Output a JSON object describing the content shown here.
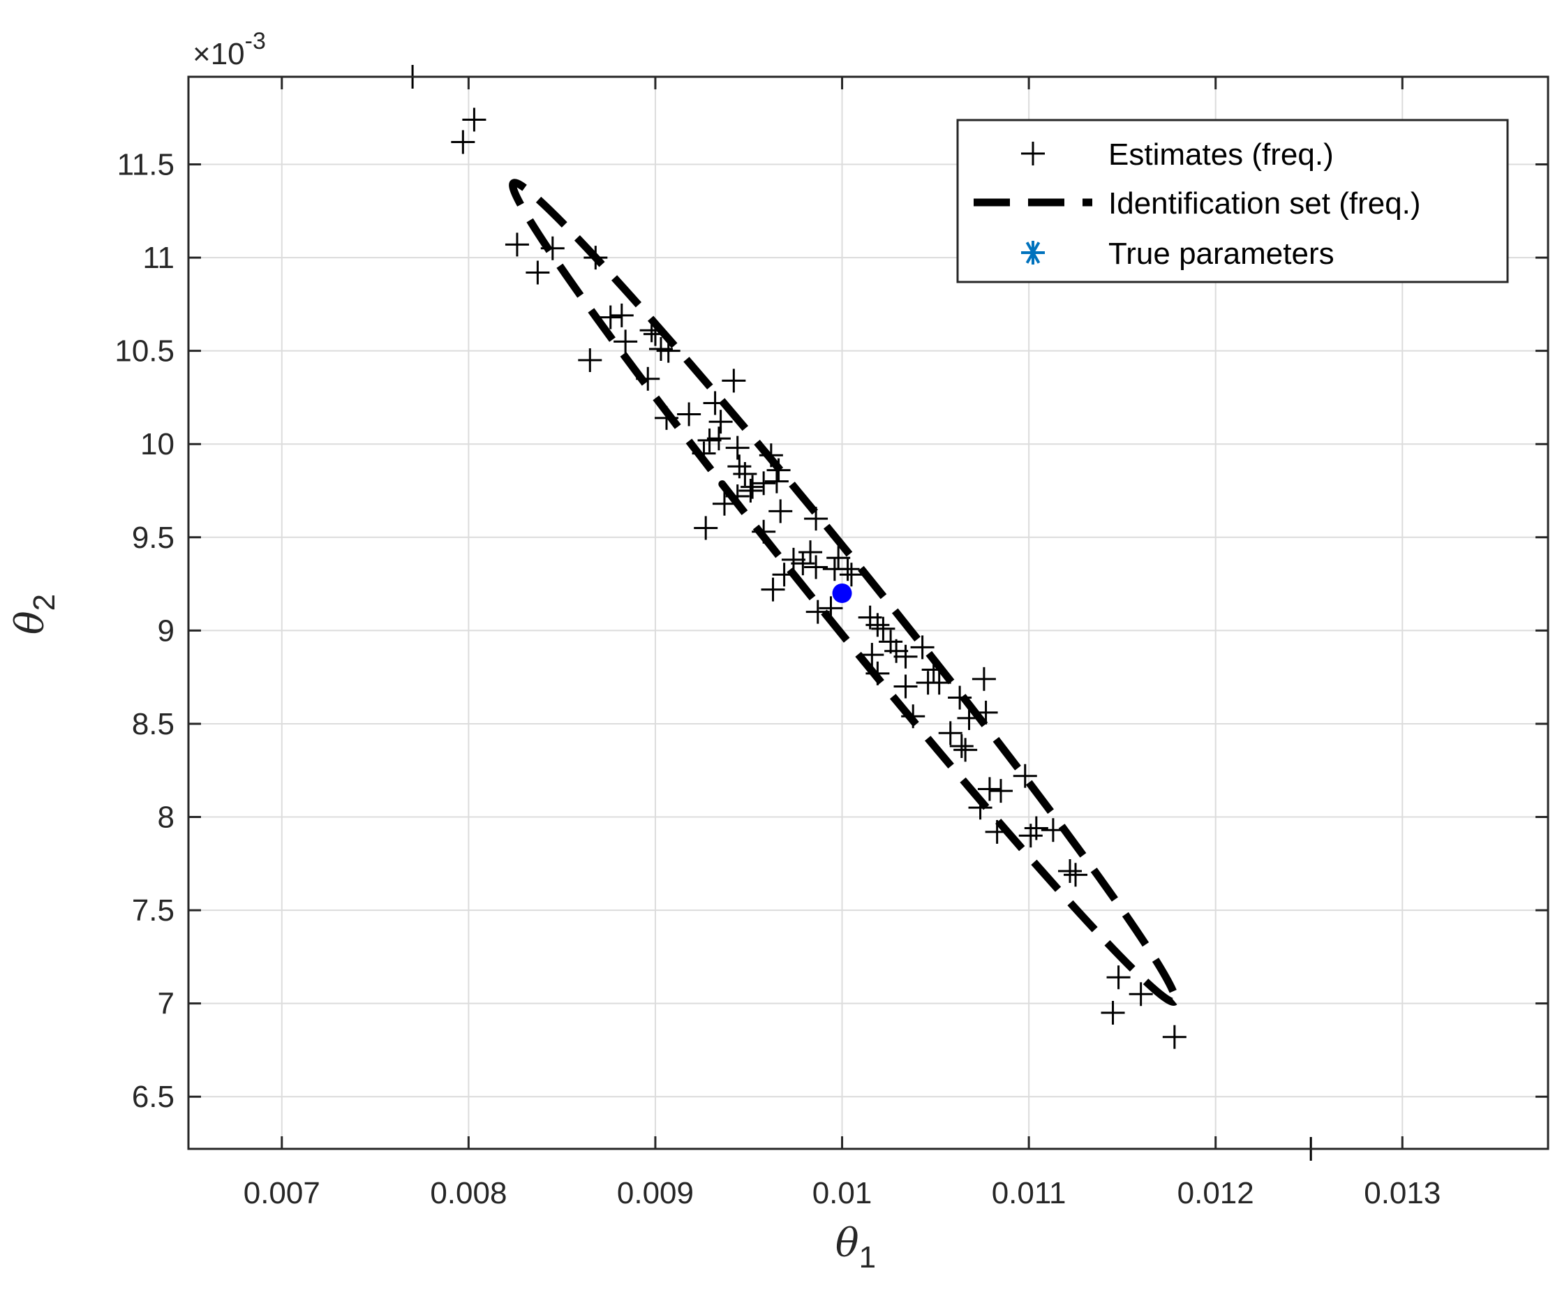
{
  "chart_data": {
    "type": "scatter",
    "xlabel": {
      "symbol": "θ",
      "subscript": "1"
    },
    "ylabel": {
      "symbol": "θ",
      "subscript": "2"
    },
    "xlim": [
      0.0065,
      0.01378
    ],
    "ylim": [
      6.22,
      11.97
    ],
    "y_multiplier": {
      "prefix": "×10",
      "exponent": "-3"
    },
    "x_ticks": [
      0.007,
      0.008,
      0.009,
      0.01,
      0.011,
      0.012,
      0.013
    ],
    "x_tick_labels": [
      "0.007",
      "0.008",
      "0.009",
      "0.01",
      "0.011",
      "0.012",
      "0.013"
    ],
    "y_ticks": [
      6.5,
      7,
      7.5,
      8,
      8.5,
      9,
      9.5,
      10,
      10.5,
      11,
      11.5
    ],
    "y_tick_labels": [
      "6.5",
      "7",
      "7.5",
      "8",
      "8.5",
      "9",
      "9.5",
      "10",
      "10.5",
      "11",
      "11.5"
    ],
    "grid": true,
    "legend_position": "top-right",
    "series": [
      {
        "name": "Estimates (freq.)",
        "marker": "plus",
        "color": "#000000",
        "points": [
          [
            0.0077,
            11.97
          ],
          [
            0.00797,
            11.62
          ],
          [
            0.00803,
            11.74
          ],
          [
            0.00826,
            11.07
          ],
          [
            0.00837,
            10.92
          ],
          [
            0.00845,
            11.05
          ],
          [
            0.00868,
            11.0
          ],
          [
            0.00876,
            10.68
          ],
          [
            0.00882,
            10.69
          ],
          [
            0.00884,
            10.55
          ],
          [
            0.00865,
            10.45
          ],
          [
            0.00896,
            10.35
          ],
          [
            0.00898,
            10.61
          ],
          [
            0.009,
            10.59
          ],
          [
            0.00903,
            10.51
          ],
          [
            0.00907,
            10.5
          ],
          [
            0.00906,
            10.14
          ],
          [
            0.00918,
            10.16
          ],
          [
            0.00929,
            10.02
          ],
          [
            0.00932,
            10.22
          ],
          [
            0.00935,
            10.12
          ],
          [
            0.00942,
            10.34
          ],
          [
            0.00926,
            9.95
          ],
          [
            0.00934,
            10.03
          ],
          [
            0.00937,
            9.68
          ],
          [
            0.00944,
            9.98
          ],
          [
            0.00945,
            9.88
          ],
          [
            0.00944,
            9.72
          ],
          [
            0.00948,
            9.84
          ],
          [
            0.00951,
            9.75
          ],
          [
            0.00952,
            9.77
          ],
          [
            0.00958,
            9.79
          ],
          [
            0.00962,
            9.94
          ],
          [
            0.00965,
            9.8
          ],
          [
            0.00966,
            9.86
          ],
          [
            0.00967,
            9.64
          ],
          [
            0.00958,
            9.53
          ],
          [
            0.00927,
            9.55
          ],
          [
            0.00986,
            9.6
          ],
          [
            0.00963,
            9.22
          ],
          [
            0.00969,
            9.3
          ],
          [
            0.00974,
            9.38
          ],
          [
            0.00979,
            9.36
          ],
          [
            0.00983,
            9.42
          ],
          [
            0.00986,
            9.34
          ],
          [
            0.00996,
            9.33
          ],
          [
            0.00998,
            9.39
          ],
          [
            0.01003,
            9.33
          ],
          [
            0.01005,
            9.3
          ],
          [
            0.00994,
            9.12
          ],
          [
            0.00987,
            9.1
          ],
          [
            0.01015,
            9.07
          ],
          [
            0.01019,
            9.03
          ],
          [
            0.01022,
            9.01
          ],
          [
            0.01016,
            8.87
          ],
          [
            0.01026,
            8.94
          ],
          [
            0.01029,
            8.89
          ],
          [
            0.01034,
            8.86
          ],
          [
            0.01043,
            8.91
          ],
          [
            0.01019,
            8.77
          ],
          [
            0.01034,
            8.7
          ],
          [
            0.01046,
            8.72
          ],
          [
            0.01049,
            8.79
          ],
          [
            0.01052,
            8.72
          ],
          [
            0.01038,
            8.54
          ],
          [
            0.01058,
            8.45
          ],
          [
            0.01063,
            8.64
          ],
          [
            0.01068,
            8.53
          ],
          [
            0.01066,
            8.36
          ],
          [
            0.01064,
            8.38
          ],
          [
            0.01076,
            8.74
          ],
          [
            0.01077,
            8.56
          ],
          [
            0.01074,
            8.05
          ],
          [
            0.01079,
            8.15
          ],
          [
            0.01085,
            8.14
          ],
          [
            0.01083,
            7.92
          ],
          [
            0.01098,
            8.22
          ],
          [
            0.01101,
            7.9
          ],
          [
            0.01104,
            7.94
          ],
          [
            0.01113,
            7.93
          ],
          [
            0.01122,
            7.71
          ],
          [
            0.01125,
            7.69
          ],
          [
            0.01148,
            7.14
          ],
          [
            0.0116,
            7.05
          ],
          [
            0.01145,
            6.95
          ],
          [
            0.01178,
            6.82
          ],
          [
            0.01251,
            6.22
          ]
        ]
      },
      {
        "name": "Identification set (freq.)",
        "line": "dashed",
        "color": "#000000",
        "ellipse": {
          "center": [
            0.0100105,
            9.205
          ],
          "tip_a": [
            0.00824,
            11.4
          ],
          "tip_b": [
            0.011781,
            7.01
          ],
          "semi_minor_ratio": 0.0534
        }
      },
      {
        "name": "True parameters",
        "marker": "asterisk",
        "color": "#0072BD",
        "points": [
          [
            0.01,
            9.2
          ]
        ]
      }
    ]
  }
}
